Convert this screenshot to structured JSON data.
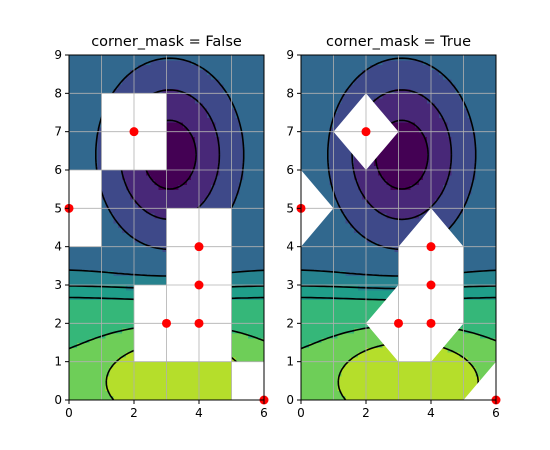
{
  "chart_data": [
    {
      "type": "contour",
      "title": "corner_mask = False",
      "corner_mask": false,
      "xlim": [
        0,
        6
      ],
      "ylim": [
        0,
        9
      ],
      "xticks": [
        0,
        2,
        4,
        6
      ],
      "yticks": [
        0,
        1,
        2,
        3,
        4,
        5,
        6,
        7,
        8,
        9
      ],
      "grid": true,
      "masked_points": [
        [
          2,
          7
        ],
        [
          0,
          5
        ],
        [
          4,
          4
        ],
        [
          4,
          3
        ],
        [
          3,
          2
        ],
        [
          4,
          2
        ],
        [
          6,
          0
        ]
      ],
      "marker_color": "#ff0000"
    },
    {
      "type": "contour",
      "title": "corner_mask = True",
      "corner_mask": true,
      "xlim": [
        0,
        6
      ],
      "ylim": [
        0,
        9
      ],
      "xticks": [
        0,
        2,
        4,
        6
      ],
      "yticks": [
        0,
        1,
        2,
        3,
        4,
        5,
        6,
        7,
        8,
        9
      ],
      "grid": true,
      "masked_points": [
        [
          2,
          7
        ],
        [
          0,
          5
        ],
        [
          4,
          4
        ],
        [
          4,
          3
        ],
        [
          3,
          2
        ],
        [
          4,
          2
        ],
        [
          6,
          0
        ]
      ],
      "marker_color": "#ff0000"
    }
  ],
  "colors": {
    "fill_levels": [
      "#440154",
      "#482878",
      "#3e4989",
      "#31688e",
      "#26828e",
      "#1f9e89",
      "#35b779",
      "#6ece58",
      "#b5de2b",
      "#d8e219"
    ],
    "contour_line": "#000000",
    "grid": "#b0b0b0"
  }
}
